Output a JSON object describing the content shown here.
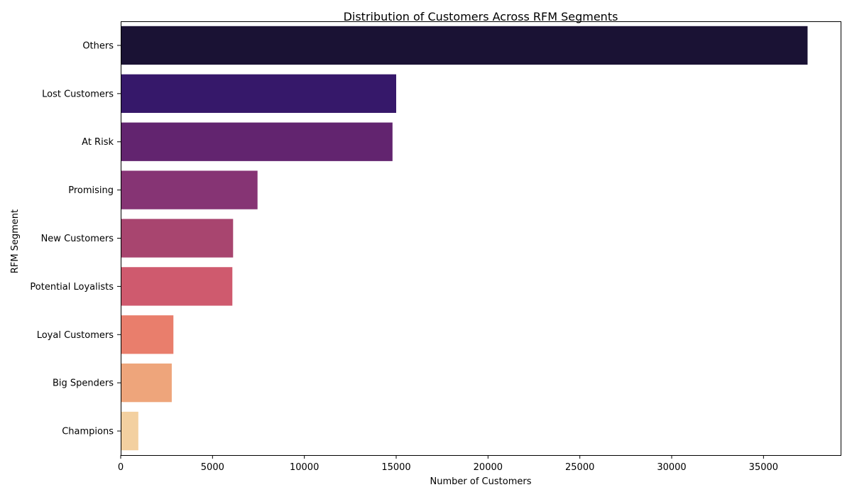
{
  "chart_data": {
    "type": "bar",
    "orientation": "horizontal",
    "title": "Distribution of Customers Across RFM Segments",
    "xlabel": "Number of Customers",
    "ylabel": "RFM Segment",
    "categories": [
      "Others",
      "Lost Customers",
      "At Risk",
      "Promising",
      "New Customers",
      "Potential Loyalists",
      "Loyal Customers",
      "Big Spenders",
      "Champions"
    ],
    "values": [
      37400,
      15000,
      14800,
      7450,
      6120,
      6080,
      2870,
      2780,
      960
    ],
    "colors": [
      "#1a1234",
      "#36186a",
      "#62246f",
      "#863474",
      "#a8456f",
      "#cf5a6e",
      "#e97e6c",
      "#eea57b",
      "#f3d0a0"
    ],
    "xlim": [
      0,
      39200
    ],
    "xticks": [
      0,
      5000,
      10000,
      15000,
      20000,
      25000,
      30000,
      35000
    ],
    "xtick_labels": [
      "0",
      "5000",
      "10000",
      "15000",
      "20000",
      "25000",
      "30000",
      "35000"
    ],
    "grid": false,
    "legend": "none"
  }
}
